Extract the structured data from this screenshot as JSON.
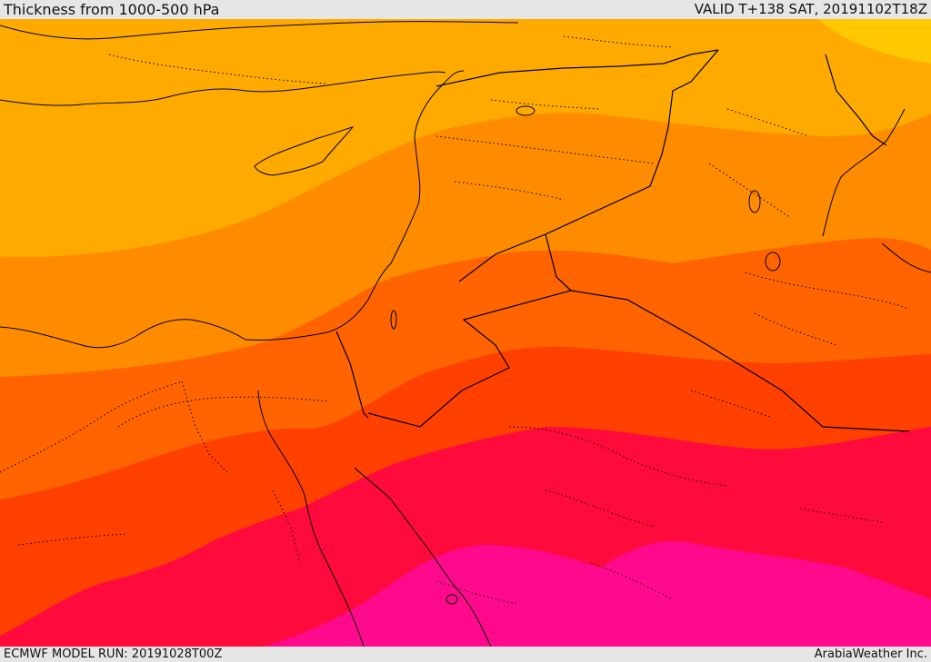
{
  "header": {
    "title": "Thickness from 1000-500 hPa",
    "valid": "VALID T+138 SAT, 20191102T18Z"
  },
  "footer": {
    "model_run": "ECMWF MODEL RUN: 20191028T00Z",
    "credit": "ArabiaWeather Inc."
  },
  "map": {
    "bands": [
      {
        "name": "band-1",
        "color": "#ffc800"
      },
      {
        "name": "band-2",
        "color": "#ffaa00"
      },
      {
        "name": "band-3",
        "color": "#ff8c00"
      },
      {
        "name": "band-4",
        "color": "#ff6400"
      },
      {
        "name": "band-5",
        "color": "#ff4000"
      },
      {
        "name": "band-6",
        "color": "#ff0a3c"
      },
      {
        "name": "band-7",
        "color": "#ff0a8c"
      }
    ],
    "border_color": "#000000"
  }
}
